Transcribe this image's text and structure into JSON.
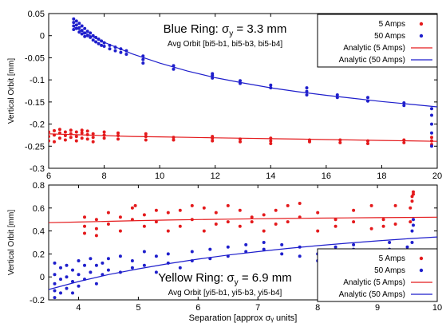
{
  "chart_data": [
    {
      "type": "scatter",
      "title": "Blue Ring: ",
      "title_sigma": "σ",
      "title_sub": "y",
      "title_value": " = 3.3 mm",
      "subtitle": "Avg Orbit [bi5-b1, bi5-b3, bi5-b4]",
      "xlabel": "",
      "ylabel": "Vertical Orbit [mm]",
      "xlim": [
        6,
        20
      ],
      "ylim": [
        -0.3,
        0.05
      ],
      "xticks": [
        "6",
        "8",
        "10",
        "12",
        "14",
        "16",
        "18",
        "20"
      ],
      "xtick_values": [
        6,
        8,
        10,
        12,
        14,
        16,
        18,
        20
      ],
      "yticks": [
        "0.05",
        "0",
        "-0.05",
        "-0.1",
        "-0.15",
        "-0.2",
        "-0.25",
        "-0.3"
      ],
      "ytick_values": [
        0.05,
        0,
        -0.05,
        -0.1,
        -0.15,
        -0.2,
        -0.25,
        -0.3
      ],
      "legend_position": "top-right",
      "legend": [
        "5 Amps",
        "50 Amps",
        "Analytic (5 Amps)",
        "Analytic (50 Amps)"
      ],
      "colors": {
        "red": "#e41a1c",
        "blue": "#1f1fcc"
      },
      "series": [
        {
          "name": "5 Amps",
          "kind": "points",
          "color": "#e41a1c",
          "x": [
            6.0,
            6.0,
            6.0,
            6.2,
            6.2,
            6.2,
            6.4,
            6.4,
            6.4,
            6.6,
            6.6,
            6.6,
            6.8,
            6.8,
            6.8,
            7.0,
            7.0,
            7.0,
            7.2,
            7.2,
            7.2,
            7.4,
            7.4,
            7.4,
            7.6,
            7.6,
            7.6,
            8.0,
            8.0,
            8.0,
            8.5,
            8.5,
            8.5,
            9.5,
            9.5,
            9.5,
            10.5,
            10.5,
            11.9,
            11.9,
            11.9,
            12.9,
            12.9,
            14.0,
            14.0,
            14.0,
            15.4,
            15.4,
            16.5,
            16.5,
            17.5,
            17.5,
            18.8,
            18.8,
            19.8,
            19.8,
            19.8
          ],
          "y": [
            -0.218,
            -0.228,
            -0.238,
            -0.215,
            -0.225,
            -0.24,
            -0.22,
            -0.232,
            -0.212,
            -0.226,
            -0.236,
            -0.218,
            -0.222,
            -0.23,
            -0.214,
            -0.218,
            -0.228,
            -0.238,
            -0.22,
            -0.232,
            -0.214,
            -0.224,
            -0.234,
            -0.216,
            -0.222,
            -0.23,
            -0.24,
            -0.225,
            -0.232,
            -0.218,
            -0.226,
            -0.234,
            -0.22,
            -0.228,
            -0.236,
            -0.222,
            -0.23,
            -0.236,
            -0.232,
            -0.238,
            -0.228,
            -0.234,
            -0.24,
            -0.232,
            -0.238,
            -0.244,
            -0.236,
            -0.24,
            -0.236,
            -0.242,
            -0.238,
            -0.244,
            -0.236,
            -0.242,
            -0.23,
            -0.238,
            -0.246
          ]
        },
        {
          "name": "50 Amps",
          "kind": "points",
          "color": "#1f1fcc",
          "x": [
            6.9,
            6.9,
            6.9,
            6.9,
            7.0,
            7.0,
            7.0,
            7.1,
            7.1,
            7.1,
            7.2,
            7.2,
            7.2,
            7.3,
            7.3,
            7.3,
            7.4,
            7.4,
            7.5,
            7.5,
            7.6,
            7.6,
            7.7,
            7.7,
            7.8,
            7.8,
            7.9,
            7.9,
            8.0,
            8.0,
            8.2,
            8.2,
            8.4,
            8.4,
            8.6,
            8.6,
            8.8,
            8.8,
            9.4,
            9.4,
            9.4,
            10.5,
            10.5,
            11.9,
            11.9,
            11.9,
            12.9,
            12.9,
            14.0,
            14.0,
            15.3,
            15.3,
            15.3,
            16.4,
            16.4,
            17.5,
            17.5,
            18.8,
            18.8,
            19.8,
            19.8,
            19.8,
            19.8,
            19.8
          ],
          "y": [
            0.038,
            0.03,
            0.022,
            0.014,
            0.033,
            0.024,
            0.016,
            0.028,
            0.018,
            0.008,
            0.022,
            0.012,
            0.004,
            0.016,
            0.006,
            -0.002,
            0.01,
            0.0,
            0.006,
            -0.004,
            0.0,
            -0.01,
            -0.004,
            -0.014,
            -0.008,
            -0.018,
            -0.012,
            -0.022,
            -0.016,
            -0.024,
            -0.022,
            -0.03,
            -0.026,
            -0.034,
            -0.03,
            -0.038,
            -0.034,
            -0.042,
            -0.046,
            -0.054,
            -0.062,
            -0.068,
            -0.076,
            -0.09,
            -0.096,
            -0.086,
            -0.102,
            -0.108,
            -0.112,
            -0.118,
            -0.118,
            -0.126,
            -0.134,
            -0.134,
            -0.14,
            -0.14,
            -0.148,
            -0.152,
            -0.158,
            -0.165,
            -0.18,
            -0.2,
            -0.22,
            -0.25
          ]
        },
        {
          "name": "Analytic (5 Amps)",
          "kind": "line",
          "color": "#e41a1c",
          "x": [
            6,
            7,
            8,
            9,
            10,
            11,
            12,
            13,
            14,
            15,
            16,
            17,
            18,
            19,
            20
          ],
          "y": [
            -0.222,
            -0.224,
            -0.226,
            -0.228,
            -0.229,
            -0.23,
            -0.231,
            -0.232,
            -0.233,
            -0.234,
            -0.235,
            -0.236,
            -0.237,
            -0.238,
            -0.239
          ]
        },
        {
          "name": "Analytic (50 Amps)",
          "kind": "line",
          "color": "#1f1fcc",
          "x": [
            6.9,
            7.5,
            8,
            9,
            10,
            11,
            12,
            13,
            14,
            15,
            16,
            17,
            18,
            19,
            20
          ],
          "y": [
            0.02,
            0.0,
            -0.015,
            -0.041,
            -0.062,
            -0.08,
            -0.095,
            -0.107,
            -0.118,
            -0.127,
            -0.135,
            -0.142,
            -0.149,
            -0.155,
            -0.161
          ]
        }
      ]
    },
    {
      "type": "scatter",
      "title": "Yellow Ring: ",
      "title_sigma": "σ",
      "title_sub": "y",
      "title_value": " = 6.9 mm",
      "subtitle": "Avg Orbit [yi5-b1, yi5-b3, yi5-b4]",
      "xlabel": "Separation [approx σᵧ units]",
      "ylabel": "Vertical Orbit [mm]",
      "xlim": [
        3.5,
        10
      ],
      "ylim": [
        -0.2,
        0.8
      ],
      "xticks": [
        "4",
        "5",
        "6",
        "7",
        "8",
        "9",
        "10"
      ],
      "xtick_values": [
        4,
        5,
        6,
        7,
        8,
        9,
        10
      ],
      "yticks": [
        "0.8",
        "0.6",
        "0.4",
        "0.2",
        "0",
        "-0.2"
      ],
      "ytick_values": [
        0.8,
        0.6,
        0.4,
        0.2,
        0,
        -0.2
      ],
      "legend_position": "bottom-right",
      "legend": [
        "5 Amps",
        "50 Amps",
        "Analytic (5 Amps)",
        "Analytic (50 Amps)"
      ],
      "colors": {
        "red": "#e41a1c",
        "blue": "#1f1fcc"
      },
      "series": [
        {
          "name": "5 Amps",
          "kind": "points",
          "color": "#e41a1c",
          "x": [
            4.1,
            4.1,
            4.1,
            4.3,
            4.3,
            4.3,
            4.5,
            4.5,
            4.7,
            4.7,
            4.9,
            4.9,
            4.95,
            5.1,
            5.1,
            5.3,
            5.3,
            5.5,
            5.5,
            5.7,
            5.7,
            5.9,
            5.9,
            6.1,
            6.1,
            6.3,
            6.3,
            6.5,
            6.5,
            6.7,
            6.7,
            6.9,
            6.9,
            7.1,
            7.1,
            7.3,
            7.3,
            7.5,
            7.5,
            7.7,
            7.7,
            8.0,
            8.0,
            8.3,
            8.3,
            8.6,
            8.6,
            8.9,
            8.9,
            9.1,
            9.1,
            9.3,
            9.3,
            9.55,
            9.55,
            9.58,
            9.58,
            9.6,
            9.6
          ],
          "y": [
            0.44,
            0.38,
            0.52,
            0.42,
            0.36,
            0.5,
            0.46,
            0.56,
            0.4,
            0.52,
            0.5,
            0.6,
            0.62,
            0.44,
            0.54,
            0.48,
            0.58,
            0.4,
            0.56,
            0.44,
            0.58,
            0.5,
            0.62,
            0.4,
            0.6,
            0.46,
            0.56,
            0.48,
            0.62,
            0.44,
            0.58,
            0.48,
            0.52,
            0.4,
            0.54,
            0.46,
            0.58,
            0.48,
            0.62,
            0.52,
            0.64,
            0.4,
            0.56,
            0.44,
            0.5,
            0.48,
            0.58,
            0.42,
            0.62,
            0.44,
            0.5,
            0.46,
            0.62,
            0.48,
            0.6,
            0.66,
            0.7,
            0.72,
            0.74
          ]
        },
        {
          "name": "50 Amps",
          "kind": "points",
          "color": "#1f1fcc",
          "x": [
            3.6,
            3.6,
            3.6,
            3.6,
            3.6,
            3.7,
            3.7,
            3.7,
            3.8,
            3.8,
            3.8,
            3.9,
            3.9,
            3.9,
            4.0,
            4.0,
            4.0,
            4.1,
            4.1,
            4.2,
            4.2,
            4.3,
            4.3,
            4.4,
            4.4,
            4.5,
            4.5,
            4.7,
            4.7,
            4.9,
            4.9,
            5.1,
            5.1,
            5.3,
            5.3,
            5.5,
            5.5,
            5.7,
            5.9,
            5.9,
            6.2,
            6.2,
            6.5,
            6.5,
            6.8,
            6.8,
            7.1,
            7.1,
            7.4,
            7.4,
            7.7,
            7.7,
            8.0,
            8.0,
            8.3,
            8.3,
            8.6,
            8.6,
            8.9,
            8.9,
            9.2,
            9.2,
            9.5,
            9.5,
            9.58,
            9.58,
            9.6,
            9.6
          ],
          "y": [
            0.12,
            0.02,
            -0.06,
            -0.12,
            -0.18,
            0.08,
            -0.02,
            -0.14,
            0.1,
            0.0,
            -0.1,
            0.06,
            -0.04,
            -0.14,
            0.14,
            0.02,
            -0.08,
            0.1,
            -0.02,
            0.16,
            0.04,
            0.1,
            -0.06,
            0.12,
            0.02,
            0.16,
            0.06,
            0.18,
            0.04,
            0.14,
            0.08,
            0.22,
            0.1,
            0.18,
            0.04,
            0.2,
            0.12,
            0.08,
            0.22,
            0.14,
            0.24,
            0.16,
            0.26,
            0.18,
            0.28,
            0.22,
            0.3,
            0.24,
            0.28,
            0.2,
            0.26,
            0.18,
            0.2,
            0.14,
            0.26,
            0.2,
            0.28,
            0.24,
            0.22,
            0.16,
            0.3,
            0.24,
            0.26,
            0.1,
            0.3,
            0.4,
            0.45,
            0.5
          ]
        },
        {
          "name": "Analytic (5 Amps)",
          "kind": "line",
          "color": "#e41a1c",
          "x": [
            3.5,
            4,
            4.5,
            5,
            5.5,
            6,
            6.5,
            7,
            7.5,
            8,
            8.5,
            9,
            9.5,
            10
          ],
          "y": [
            0.472,
            0.478,
            0.484,
            0.49,
            0.495,
            0.499,
            0.503,
            0.506,
            0.509,
            0.512,
            0.514,
            0.516,
            0.518,
            0.52
          ]
        },
        {
          "name": "Analytic (50 Amps)",
          "kind": "line",
          "color": "#1f1fcc",
          "x": [
            3.5,
            4,
            4.5,
            5,
            5.5,
            6,
            6.5,
            7,
            7.5,
            8,
            8.5,
            9,
            9.5,
            10
          ],
          "y": [
            -0.11,
            -0.04,
            0.02,
            0.07,
            0.115,
            0.155,
            0.19,
            0.22,
            0.248,
            0.272,
            0.294,
            0.314,
            0.332,
            0.348
          ]
        }
      ]
    }
  ]
}
